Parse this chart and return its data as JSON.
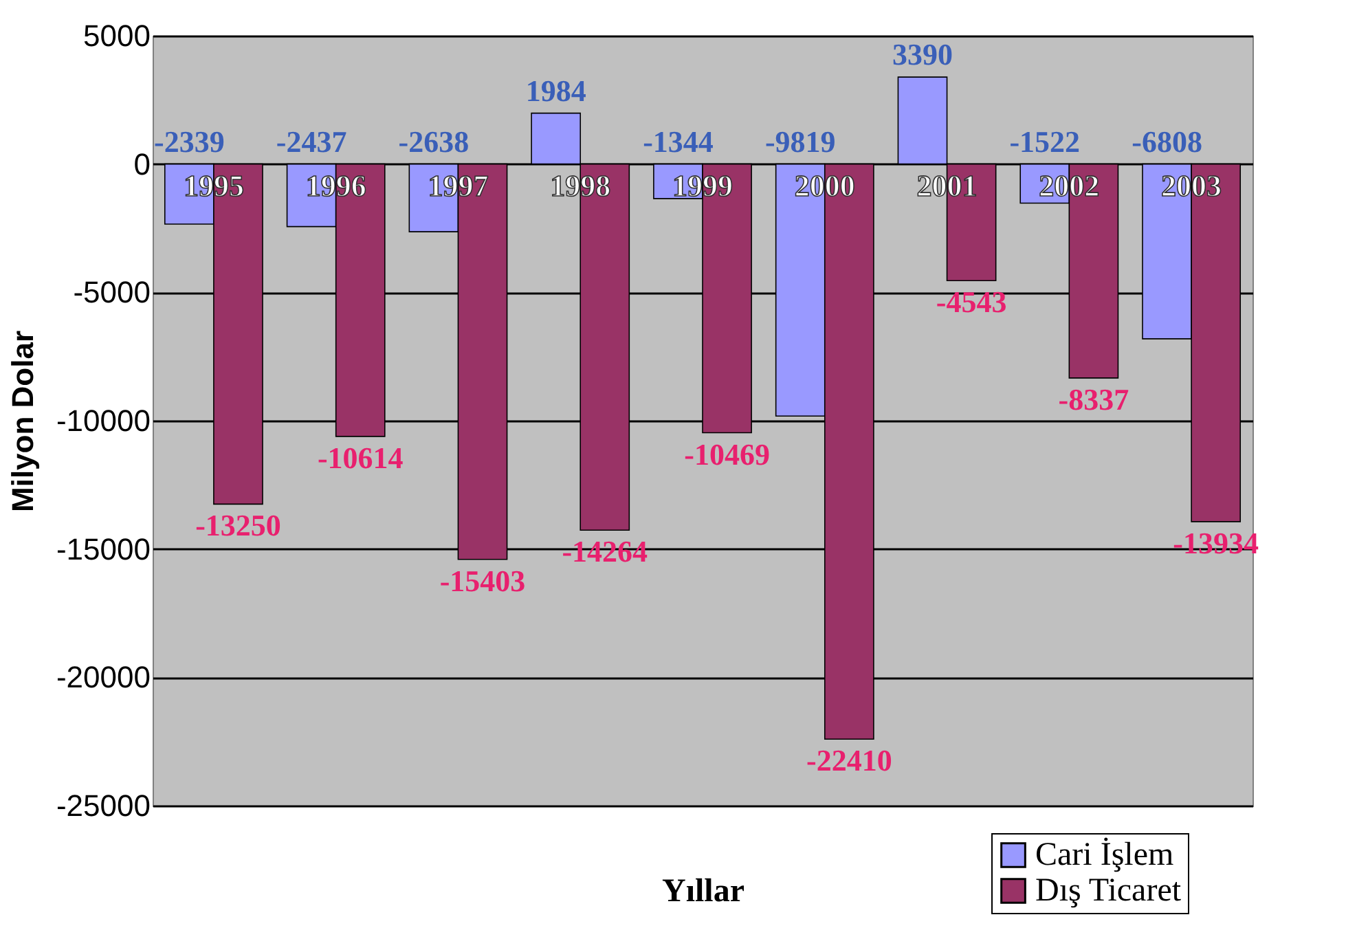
{
  "chart_data": {
    "type": "bar",
    "xlabel": "Yıllar",
    "ylabel": "Milyon Dolar",
    "categories": [
      "1995",
      "1996",
      "1997",
      "1998",
      "1999",
      "2000",
      "2001",
      "2002",
      "2003"
    ],
    "series": [
      {
        "name": "Cari İşlem",
        "color": "#9999ff",
        "values": [
          -2339,
          -2437,
          -2638,
          1984,
          -1344,
          -9819,
          3390,
          -1522,
          -6808
        ]
      },
      {
        "name": "Dış Ticaret",
        "color": "#993366",
        "values": [
          -13250,
          -10614,
          -15403,
          -14264,
          -10469,
          -22410,
          -4543,
          -8337,
          -13934
        ]
      }
    ],
    "ylim": [
      -25000,
      5000
    ],
    "yticks": [
      -25000,
      -20000,
      -15000,
      -10000,
      -5000,
      0,
      5000
    ],
    "grid": "y",
    "legend": "bottom right",
    "data_labels": true
  }
}
